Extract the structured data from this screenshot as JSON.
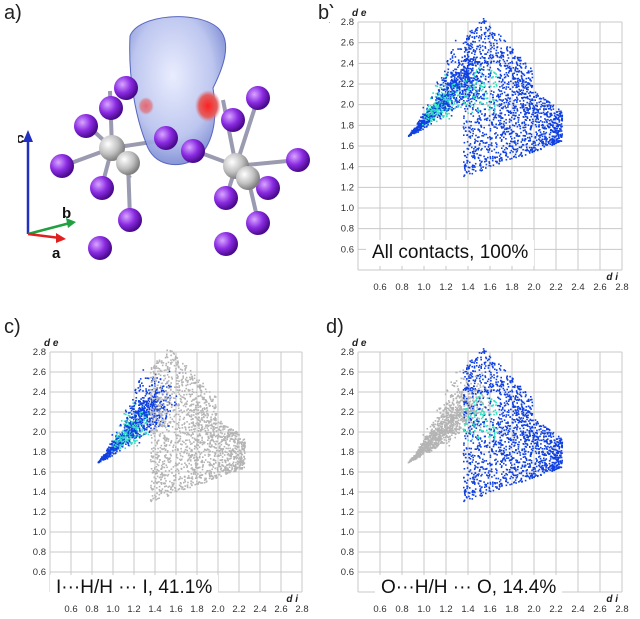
{
  "panels": [
    {
      "id": "a",
      "label": "a)"
    },
    {
      "id": "b",
      "label": "b)",
      "caption": "All contacts, 100%"
    },
    {
      "id": "c",
      "label": "c)",
      "caption": "I···H/H ··· I, 41.1%"
    },
    {
      "id": "d",
      "label": "d)",
      "caption": "O···H/H ··· O, 14.4%"
    }
  ],
  "axes_labels": {
    "a": "a",
    "b": "b",
    "c": "c"
  },
  "colors": {
    "grid": "#c8c8c8",
    "blue": "#1040e0",
    "cyan": "#30e0c0",
    "grey": "#b4b4b4",
    "iodine": "#8a2be2",
    "metal": "#c8c8c8",
    "axis_a": "#e02020",
    "axis_b": "#20a040",
    "axis_c": "#2030c0"
  },
  "chart_data": [
    {
      "type": "scatter",
      "panel": "b",
      "title": "",
      "xlabel": "d i",
      "ylabel": "d e",
      "xlim": [
        0.4,
        2.8
      ],
      "ylim": [
        0.4,
        2.8
      ],
      "xticks": [
        "0.6",
        "0.8",
        "1.0",
        "1.2",
        "1.4",
        "1.6",
        "1.8",
        "2.0",
        "2.2",
        "2.4",
        "2.6",
        "2.8"
      ],
      "yticks": [
        "0.6",
        "0.8",
        "1.0",
        "1.2",
        "1.4",
        "1.6",
        "1.8",
        "2.0",
        "2.2",
        "2.4",
        "2.6",
        "2.8"
      ],
      "grid": true,
      "highlight": "all",
      "series": [
        {
          "region": "wing",
          "x": [
            0.85,
            1.35,
            1.55,
            1.2
          ],
          "y": [
            1.7,
            2.2,
            2.6,
            2.25
          ]
        },
        {
          "region": "body",
          "x": [
            1.35,
            2.25,
            2.25,
            1.55
          ],
          "y": [
            1.3,
            1.55,
            2.3,
            2.85
          ]
        }
      ]
    },
    {
      "type": "scatter",
      "panel": "c",
      "title": "",
      "xlabel": "d i",
      "ylabel": "d e",
      "xlim": [
        0.4,
        2.8
      ],
      "ylim": [
        0.4,
        2.8
      ],
      "xticks": [
        "0.6",
        "0.8",
        "1.0",
        "1.2",
        "1.4",
        "1.6",
        "1.8",
        "2.0",
        "2.2",
        "2.4",
        "2.6",
        "2.8"
      ],
      "yticks": [
        "0.6",
        "0.8",
        "1.0",
        "1.2",
        "1.4",
        "1.6",
        "1.8",
        "2.0",
        "2.2",
        "2.4",
        "2.6",
        "2.8"
      ],
      "grid": true,
      "highlight": "wing",
      "series": [
        {
          "region": "wing",
          "x": [
            0.85,
            1.35,
            1.55,
            1.2
          ],
          "y": [
            1.7,
            2.2,
            2.6,
            2.25
          ]
        },
        {
          "region": "body",
          "x": [
            1.35,
            2.25,
            2.25,
            1.55
          ],
          "y": [
            1.3,
            1.55,
            2.3,
            2.85
          ]
        }
      ]
    },
    {
      "type": "scatter",
      "panel": "d",
      "title": "",
      "xlabel": "d i",
      "ylabel": "d e",
      "xlim": [
        0.4,
        2.8
      ],
      "ylim": [
        0.4,
        2.8
      ],
      "xticks": [
        "0.6",
        "0.8",
        "1.0",
        "1.2",
        "1.4",
        "1.6",
        "1.8",
        "2.0",
        "2.2",
        "2.4",
        "2.6",
        "2.8"
      ],
      "yticks": [
        "0.6",
        "0.8",
        "1.0",
        "1.2",
        "1.4",
        "1.6",
        "1.8",
        "2.0",
        "2.2",
        "2.4",
        "2.6",
        "2.8"
      ],
      "grid": true,
      "highlight": "body",
      "series": [
        {
          "region": "wing",
          "x": [
            0.85,
            1.35,
            1.55,
            1.2
          ],
          "y": [
            1.7,
            2.2,
            2.6,
            2.25
          ]
        },
        {
          "region": "body",
          "x": [
            1.35,
            2.25,
            2.25,
            1.55
          ],
          "y": [
            1.3,
            1.55,
            2.3,
            2.85
          ]
        }
      ]
    }
  ]
}
